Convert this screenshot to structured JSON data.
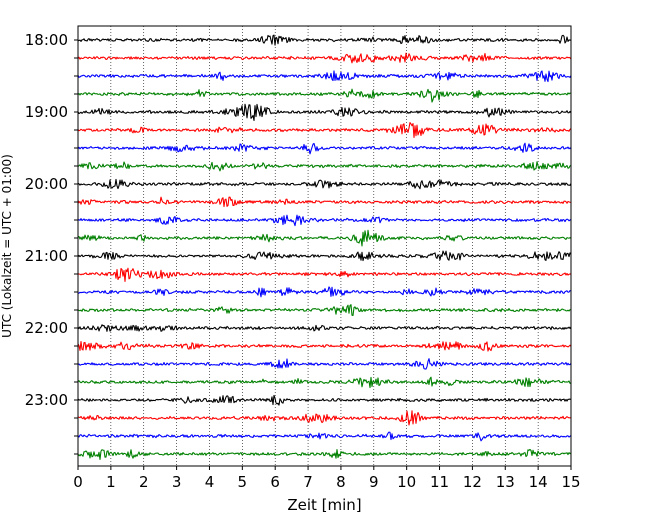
{
  "chart_data": {
    "type": "line",
    "title": "",
    "xlabel": "Zeit  [min]",
    "ylabel": "UTC (Lokalzeit = UTC + 01:00)",
    "xlim": [
      0,
      15
    ],
    "x_ticks": [
      0,
      1,
      2,
      3,
      4,
      5,
      6,
      7,
      8,
      9,
      10,
      11,
      12,
      13,
      14,
      15
    ],
    "x_tick_labels": [
      "0",
      "1",
      "2",
      "3",
      "4",
      "5",
      "6",
      "7",
      "8",
      "9",
      "10",
      "11",
      "12",
      "13",
      "14",
      "15"
    ],
    "y_tick_labels": [
      "18:00",
      "19:00",
      "20:00",
      "21:00",
      "22:00",
      "23:00"
    ],
    "trace_interval_minutes": 15,
    "first_trace_time": "18:00",
    "last_trace_time": "23:45",
    "trace_count": 24,
    "trace_color_cycle": [
      "#000000",
      "#ff0000",
      "#0000ff",
      "#008000"
    ],
    "vertical_grid": "dotted, at every minute",
    "series": []
  }
}
